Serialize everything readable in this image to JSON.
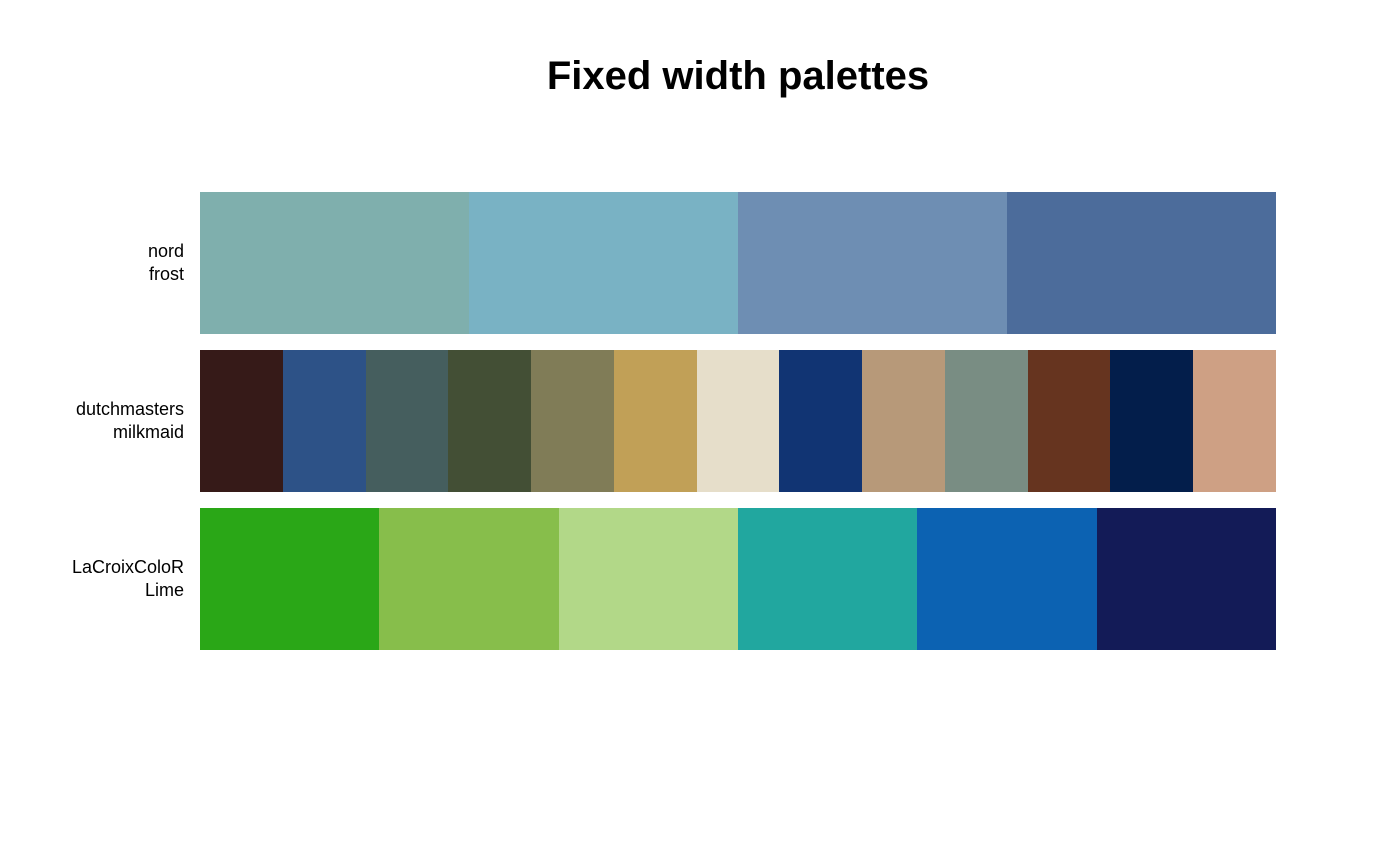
{
  "chart_data": {
    "type": "table",
    "title": "Fixed width palettes",
    "palettes": [
      {
        "package": "nord",
        "name": "frost",
        "colors": [
          "#7FAFAD",
          "#79B2C4",
          "#6E8EB3",
          "#4C6C9B"
        ]
      },
      {
        "package": "dutchmasters",
        "name": "milkmaid",
        "colors": [
          "#361A18",
          "#2D5287",
          "#455E5E",
          "#434F35",
          "#807C57",
          "#C1A057",
          "#E6DECA",
          "#113473",
          "#B79979",
          "#798D83",
          "#66341F",
          "#031E4B",
          "#CEA084"
        ]
      },
      {
        "package": "LaCroixColoR",
        "name": "Lime",
        "colors": [
          "#2AA717",
          "#87BE4B",
          "#B2D888",
          "#21A79F",
          "#0C62B2",
          "#131B57"
        ]
      }
    ]
  }
}
